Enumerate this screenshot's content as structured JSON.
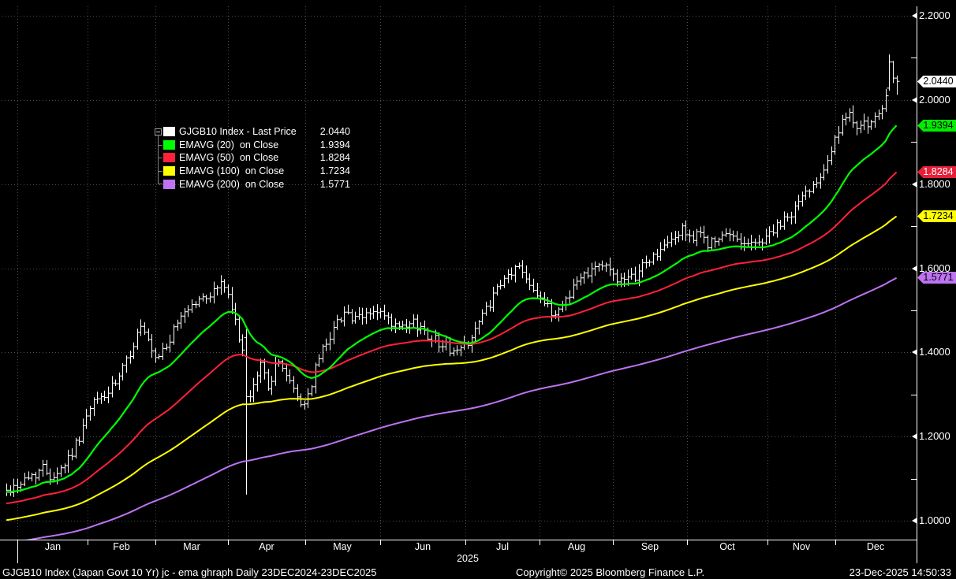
{
  "colors": {
    "background": "#000000",
    "grid": "#4e4e4e",
    "axis": "#ffffff",
    "bar": "#ffffff",
    "ema20": "#00ff00",
    "ema50": "#ff2139",
    "ema100": "#ffff00",
    "ema200": "#bd73f2"
  },
  "legend": {
    "rows": [
      {
        "label": "GJGB10 Index - Last Price",
        "value": "2.0440",
        "color": "#ffffff"
      },
      {
        "label": "EMAVG (20)  on Close",
        "value": "1.9394",
        "color": "#00ff00"
      },
      {
        "label": "EMAVG (50)  on Close",
        "value": "1.8284",
        "color": "#ff2139"
      },
      {
        "label": "EMAVG (100)  on Close",
        "value": "1.7234",
        "color": "#ffff00"
      },
      {
        "label": "EMAVG (200)  on Close",
        "value": "1.5771",
        "color": "#bd73f2"
      }
    ]
  },
  "y_axis": {
    "majors": [
      {
        "label": "2.2000",
        "value": 2.2
      },
      {
        "label": "2.0000",
        "value": 2.0
      },
      {
        "label": "1.8000",
        "value": 1.8
      },
      {
        "label": "1.6000",
        "value": 1.6
      },
      {
        "label": "1.4000",
        "value": 1.4
      },
      {
        "label": "1.2000",
        "value": 1.2
      },
      {
        "label": "1.0000",
        "value": 1.0
      }
    ],
    "minors": [
      2.1,
      1.9,
      1.7,
      1.5,
      1.3,
      1.1
    ],
    "badges": [
      {
        "text": "2.0440",
        "value": 2.044,
        "bg": "#ffffff",
        "fg": "#000000"
      },
      {
        "text": "1.9394",
        "value": 1.9394,
        "bg": "#00ee00",
        "fg": "#000000"
      },
      {
        "text": "1.8284",
        "value": 1.8284,
        "bg": "#e81f38",
        "fg": "#ffffff"
      },
      {
        "text": "1.7234",
        "value": 1.7234,
        "bg": "#ffff00",
        "fg": "#000000"
      },
      {
        "text": "1.5771",
        "value": 1.5771,
        "bg": "#bd73f2",
        "fg": "#000000"
      }
    ]
  },
  "x_axis": {
    "month_labels": [
      "Jan",
      "Feb",
      "Mar",
      "Apr",
      "May",
      "Jun",
      "Jul",
      "Aug",
      "Sep",
      "Oct",
      "Nov",
      "Dec"
    ],
    "month_boundaries_t": [
      0.0121,
      0.0893,
      0.1638,
      0.2435,
      0.3284,
      0.4107,
      0.5043,
      0.5858,
      0.6664,
      0.7478,
      0.8362,
      0.9107
    ],
    "end_t": 1.0,
    "year_label": "2025"
  },
  "chart_data": {
    "type": "bar",
    "subtype": "ohlc-daily-with-ema-overlays",
    "title": "GJGB10 Index - Last Price",
    "period_label": "Daily 23DEC2024-23DEC2025",
    "last_price": 2.044,
    "ylim": [
      0.957,
      2.222
    ],
    "grid": "dotted",
    "legend_position": "top-left",
    "series": [
      {
        "name": "GJGB10 Index - Last Price",
        "type": "ohlc_bars",
        "color": "#ffffff",
        "bars_count": 246,
        "last_bar_t": 0.978,
        "close_trend_keyframes": [
          [
            0.0,
            1.07
          ],
          [
            0.015,
            1.09
          ],
          [
            0.03,
            1.11
          ],
          [
            0.04,
            1.125
          ],
          [
            0.05,
            1.105
          ],
          [
            0.062,
            1.13
          ],
          [
            0.075,
            1.175
          ],
          [
            0.086,
            1.235
          ],
          [
            0.097,
            1.285
          ],
          [
            0.11,
            1.3
          ],
          [
            0.122,
            1.33
          ],
          [
            0.136,
            1.4
          ],
          [
            0.147,
            1.462
          ],
          [
            0.157,
            1.415
          ],
          [
            0.163,
            1.375
          ],
          [
            0.172,
            1.405
          ],
          [
            0.182,
            1.44
          ],
          [
            0.193,
            1.495
          ],
          [
            0.205,
            1.515
          ],
          [
            0.218,
            1.53
          ],
          [
            0.23,
            1.55
          ],
          [
            0.237,
            1.572
          ],
          [
            0.245,
            1.52
          ],
          [
            0.254,
            1.45
          ],
          [
            0.259,
            1.42
          ],
          [
            0.263,
            1.295
          ],
          [
            0.268,
            1.28
          ],
          [
            0.274,
            1.34
          ],
          [
            0.28,
            1.375
          ],
          [
            0.287,
            1.32
          ],
          [
            0.295,
            1.36
          ],
          [
            0.302,
            1.38
          ],
          [
            0.31,
            1.33
          ],
          [
            0.318,
            1.3
          ],
          [
            0.326,
            1.27
          ],
          [
            0.333,
            1.31
          ],
          [
            0.342,
            1.38
          ],
          [
            0.352,
            1.43
          ],
          [
            0.362,
            1.465
          ],
          [
            0.372,
            1.505
          ],
          [
            0.38,
            1.475
          ],
          [
            0.39,
            1.48
          ],
          [
            0.4,
            1.498
          ],
          [
            0.412,
            1.49
          ],
          [
            0.424,
            1.462
          ],
          [
            0.436,
            1.452
          ],
          [
            0.448,
            1.47
          ],
          [
            0.46,
            1.448
          ],
          [
            0.472,
            1.43
          ],
          [
            0.484,
            1.412
          ],
          [
            0.495,
            1.4
          ],
          [
            0.506,
            1.425
          ],
          [
            0.518,
            1.465
          ],
          [
            0.53,
            1.515
          ],
          [
            0.542,
            1.555
          ],
          [
            0.554,
            1.59
          ],
          [
            0.564,
            1.605
          ],
          [
            0.574,
            1.57
          ],
          [
            0.584,
            1.54
          ],
          [
            0.594,
            1.505
          ],
          [
            0.602,
            1.488
          ],
          [
            0.612,
            1.52
          ],
          [
            0.624,
            1.56
          ],
          [
            0.636,
            1.59
          ],
          [
            0.648,
            1.612
          ],
          [
            0.66,
            1.6
          ],
          [
            0.67,
            1.58
          ],
          [
            0.68,
            1.562
          ],
          [
            0.69,
            1.58
          ],
          [
            0.7,
            1.61
          ],
          [
            0.712,
            1.63
          ],
          [
            0.724,
            1.65
          ],
          [
            0.736,
            1.68
          ],
          [
            0.746,
            1.692
          ],
          [
            0.754,
            1.668
          ],
          [
            0.762,
            1.68
          ],
          [
            0.772,
            1.658
          ],
          [
            0.782,
            1.665
          ],
          [
            0.792,
            1.678
          ],
          [
            0.802,
            1.672
          ],
          [
            0.812,
            1.662
          ],
          [
            0.822,
            1.655
          ],
          [
            0.832,
            1.672
          ],
          [
            0.842,
            1.69
          ],
          [
            0.852,
            1.705
          ],
          [
            0.862,
            1.73
          ],
          [
            0.872,
            1.762
          ],
          [
            0.882,
            1.79
          ],
          [
            0.89,
            1.812
          ],
          [
            0.898,
            1.842
          ],
          [
            0.906,
            1.88
          ],
          [
            0.914,
            1.925
          ],
          [
            0.92,
            1.95
          ],
          [
            0.928,
            1.962
          ],
          [
            0.934,
            1.94
          ],
          [
            0.94,
            1.955
          ],
          [
            0.947,
            1.928
          ],
          [
            0.954,
            1.95
          ],
          [
            0.961,
            1.978
          ],
          [
            0.966,
            2.0
          ],
          [
            0.972,
            2.03
          ],
          [
            0.978,
            2.044
          ]
        ],
        "special_bars": [
          {
            "t": 0.263,
            "open": 1.435,
            "high": 1.455,
            "low": 1.062,
            "close": 1.295
          },
          {
            "t": 0.97,
            "open": 2.028,
            "high": 2.108,
            "low": 2.022,
            "close": 2.09
          },
          {
            "t": 0.974,
            "open": 2.09,
            "high": 2.093,
            "low": 2.04,
            "close": 2.052
          },
          {
            "t": 0.978,
            "open": 2.052,
            "high": 2.058,
            "low": 2.012,
            "close": 2.044
          }
        ],
        "noise": {
          "seed": 42,
          "close_amp": 0.013,
          "wick_amp": 0.014,
          "min_wick": 0.004
        }
      },
      {
        "name": "EMAVG (20) on Close",
        "type": "ema",
        "period": 20,
        "color": "#00ff00",
        "start_seed": 1.068,
        "last_value": 1.9394
      },
      {
        "name": "EMAVG (50) on Close",
        "type": "ema",
        "period": 50,
        "color": "#ff2139",
        "start_seed": 1.04,
        "last_value": 1.8284
      },
      {
        "name": "EMAVG (100) on Close",
        "type": "ema",
        "period": 100,
        "color": "#ffff00",
        "start_seed": 1.0,
        "last_value": 1.7234
      },
      {
        "name": "EMAVG (200) on Close",
        "type": "ema",
        "period": 200,
        "color": "#bd73f2",
        "start_seed": 0.945,
        "last_value": 1.5771
      }
    ]
  },
  "footer": {
    "left": "GJGB10 Index (Japan Govt 10 Yr) jc - ema ghraph Daily 23DEC2024-23DEC2025",
    "center": "Copyright© 2025 Bloomberg Finance L.P.",
    "right": "23-Dec-2025 14:50:33"
  }
}
